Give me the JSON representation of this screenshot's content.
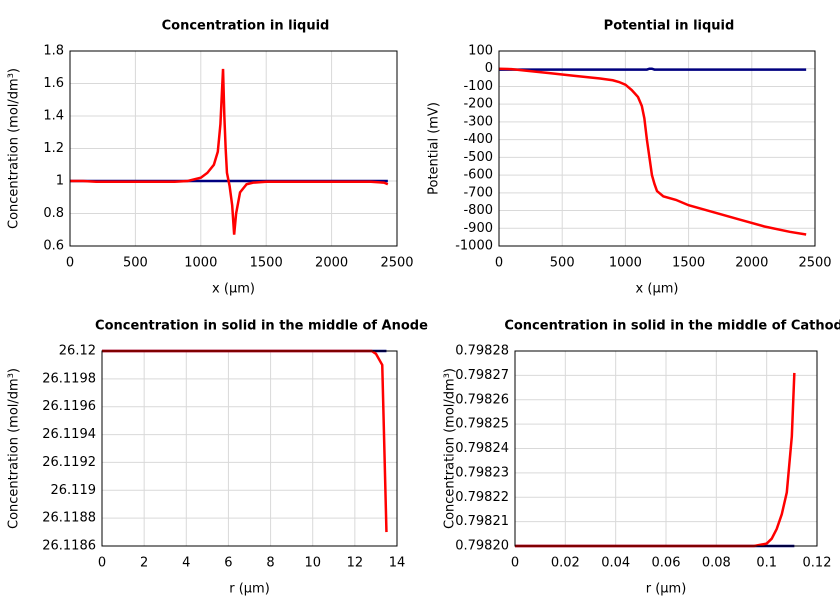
{
  "chart_data": [
    {
      "type": "line",
      "title": "Concentration in liquid",
      "xlabel": "x (µm)",
      "ylabel": "Concentration (mol/dm³)",
      "x": [
        0,
        100,
        200,
        400,
        600,
        800,
        900,
        1000,
        1050,
        1100,
        1130,
        1150,
        1170,
        1180,
        1190,
        1200,
        1220,
        1240,
        1255,
        1270,
        1300,
        1350,
        1400,
        1500,
        1700,
        2000,
        2300,
        2400,
        2430
      ],
      "series": [
        {
          "color": "#000080",
          "values": [
            1,
            1,
            1,
            1,
            1,
            1,
            1,
            1,
            1,
            1,
            1,
            1,
            1,
            1,
            1,
            1,
            1,
            1,
            1,
            1,
            1,
            1,
            1,
            1,
            1,
            1,
            1,
            1,
            1
          ]
        },
        {
          "color": "#ff0000",
          "values": [
            1.0,
            1.0,
            0.995,
            0.995,
            0.995,
            0.995,
            1.0,
            1.02,
            1.05,
            1.1,
            1.18,
            1.35,
            1.69,
            1.4,
            1.2,
            1.05,
            0.97,
            0.85,
            0.67,
            0.8,
            0.93,
            0.98,
            0.99,
            0.995,
            0.995,
            0.995,
            0.995,
            0.99,
            0.98
          ]
        }
      ],
      "xlim": [
        0,
        2500
      ],
      "ylim": [
        0.6,
        1.8
      ],
      "xticks": [
        0,
        500,
        1000,
        1500,
        2000,
        2500
      ],
      "yticks": [
        0.6,
        0.8,
        1,
        1.2,
        1.4,
        1.6,
        1.8
      ],
      "grid": true
    },
    {
      "type": "line",
      "title": "Potential in liquid",
      "xlabel": "x (µm)",
      "ylabel": "Potential (mV)",
      "x": [
        0,
        100,
        200,
        400,
        600,
        800,
        900,
        950,
        1000,
        1050,
        1100,
        1130,
        1150,
        1170,
        1190,
        1210,
        1230,
        1250,
        1300,
        1400,
        1500,
        1700,
        1900,
        2100,
        2300,
        2430
      ],
      "series": [
        {
          "color": "#000080",
          "values": [
            -5,
            -5,
            -5,
            -5,
            -5,
            -5,
            -5,
            -5,
            -5,
            -5,
            -5,
            -5,
            -5,
            -5,
            0,
            0,
            -5,
            -5,
            -5,
            -5,
            -5,
            -5,
            -5,
            -5,
            -5,
            -5
          ]
        },
        {
          "color": "#ff0000",
          "values": [
            0,
            -2,
            -10,
            -25,
            -40,
            -55,
            -65,
            -75,
            -90,
            -120,
            -160,
            -210,
            -280,
            -400,
            -500,
            -600,
            -650,
            -690,
            -720,
            -740,
            -770,
            -810,
            -850,
            -890,
            -920,
            -935
          ]
        }
      ],
      "xlim": [
        0,
        2500
      ],
      "ylim": [
        -1000,
        100
      ],
      "xticks": [
        0,
        500,
        1000,
        1500,
        2000,
        2500
      ],
      "yticks": [
        -1000,
        -900,
        -800,
        -700,
        -600,
        -500,
        -400,
        -300,
        -200,
        -100,
        0,
        100
      ],
      "grid": true
    },
    {
      "type": "line",
      "title": "Concentration in solid in the middle of Anode",
      "xlabel": "r (µm)",
      "ylabel": "Concentration (mol/dm³)",
      "x": [
        0,
        2,
        4,
        6,
        8,
        10,
        12,
        12.8,
        13.0,
        13.3,
        13.5
      ],
      "series": [
        {
          "color": "#000080",
          "values": [
            26.12,
            26.12,
            26.12,
            26.12,
            26.12,
            26.12,
            26.12,
            26.12,
            26.12,
            26.12,
            26.12
          ]
        },
        {
          "color": "#ff0000",
          "values": [
            26.12,
            26.12,
            26.12,
            26.12,
            26.12,
            26.12,
            26.12,
            26.12,
            26.11998,
            26.1199,
            26.1187
          ]
        }
      ],
      "xlim": [
        0,
        14
      ],
      "ylim": [
        26.1186,
        26.12
      ],
      "xticks": [
        0,
        2,
        4,
        6,
        8,
        10,
        12,
        14
      ],
      "yticks": [
        26.1186,
        26.1188,
        26.119,
        26.1192,
        26.1194,
        26.1196,
        26.1198,
        26.12
      ],
      "grid": true
    },
    {
      "type": "line",
      "title": "Concentration in solid in the middle of Cathode",
      "xlabel": "r (µm)",
      "ylabel": "Concentration (mol/dm³)",
      "x": [
        0,
        0.02,
        0.04,
        0.06,
        0.08,
        0.095,
        0.1,
        0.102,
        0.104,
        0.106,
        0.108,
        0.11,
        0.111
      ],
      "series": [
        {
          "color": "#000080",
          "values": [
            0.7982,
            0.7982,
            0.7982,
            0.7982,
            0.7982,
            0.7982,
            0.7982,
            0.7982,
            0.7982,
            0.7982,
            0.7982,
            0.7982,
            0.7982
          ]
        },
        {
          "color": "#ff0000",
          "values": [
            0.7982,
            0.7982,
            0.7982,
            0.7982,
            0.7982,
            0.7982,
            0.798201,
            0.798203,
            0.798207,
            0.798213,
            0.798222,
            0.798245,
            0.798271
          ]
        }
      ],
      "xlim": [
        0,
        0.12
      ],
      "ylim": [
        0.7982,
        0.79828
      ],
      "xticks": [
        0,
        0.02,
        0.04,
        0.06,
        0.08,
        0.1,
        0.12
      ],
      "yticks": [
        {
          "value": 0.7982,
          "label": "0.79820"
        },
        0.79821,
        0.79822,
        0.79823,
        0.79824,
        0.79825,
        0.79826,
        0.79827,
        0.79828
      ],
      "grid": true
    }
  ]
}
